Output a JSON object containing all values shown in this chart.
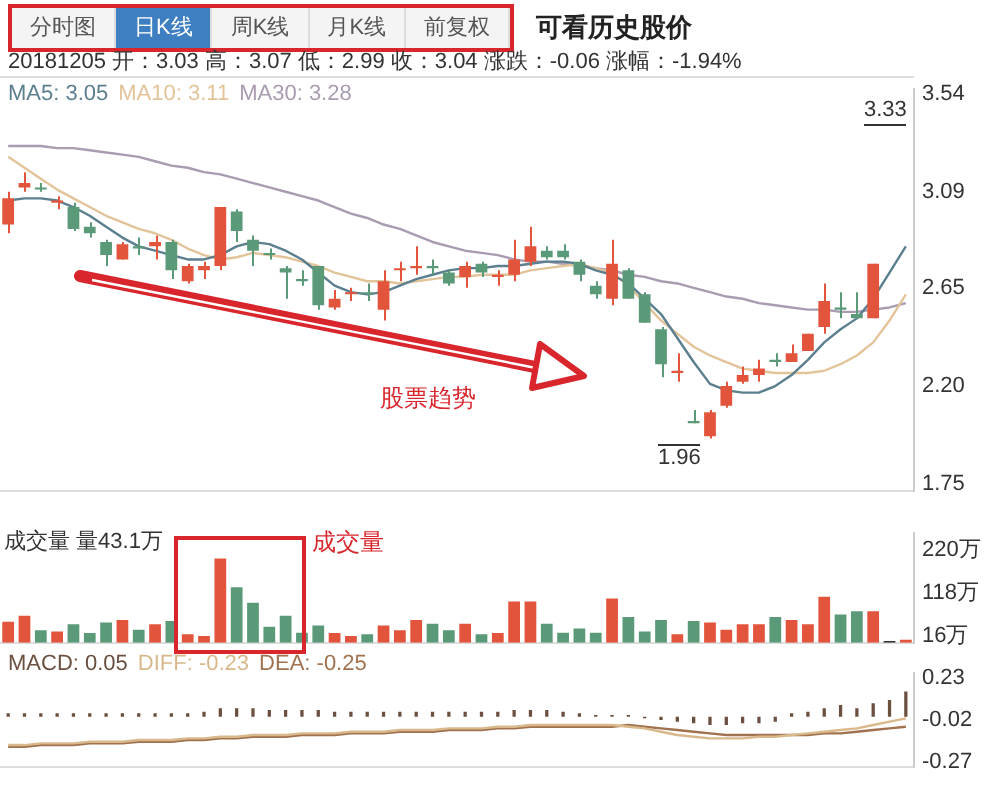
{
  "chart_data": [
    {
      "type": "candlestick",
      "title": "可看历史股价",
      "annotations": [
        "分时图",
        "日K线",
        "周K线",
        "月K线",
        "前复权",
        "20181205 开：3.03 高：3.07 低：2.99 收：3.04 涨跌：-0.06 涨幅：-1.94%",
        "3.33",
        "1.96",
        "股票趋势"
      ],
      "categories": [
        null,
        null,
        null,
        null,
        null,
        null,
        null,
        null,
        null,
        null,
        null,
        null,
        null,
        null,
        null,
        null,
        null,
        null,
        null,
        null,
        null,
        null,
        null,
        null,
        null,
        null,
        null,
        null,
        null,
        null,
        null,
        null,
        null,
        null,
        null,
        null,
        null,
        null,
        null,
        null,
        null,
        null,
        null,
        null,
        null,
        null,
        null,
        null,
        null,
        null,
        null,
        null,
        null,
        null,
        null,
        null
      ],
      "ohlc": [
        [
          2.94,
          3.09,
          2.9,
          3.06
        ],
        [
          3.11,
          3.18,
          3.09,
          3.13
        ],
        [
          3.11,
          3.13,
          3.09,
          3.1
        ],
        [
          3.04,
          3.07,
          3.01,
          3.05
        ],
        [
          3.02,
          3.04,
          2.91,
          2.92
        ],
        [
          2.93,
          2.95,
          2.88,
          2.9
        ],
        [
          2.86,
          2.87,
          2.75,
          2.8
        ],
        [
          2.78,
          2.86,
          2.78,
          2.85
        ],
        [
          2.84,
          2.88,
          2.8,
          2.83
        ],
        [
          2.84,
          2.89,
          2.78,
          2.86
        ],
        [
          2.86,
          2.87,
          2.69,
          2.73
        ],
        [
          2.68,
          2.76,
          2.67,
          2.75
        ],
        [
          2.73,
          2.77,
          2.69,
          2.75
        ],
        [
          2.75,
          3.02,
          2.73,
          3.02
        ],
        [
          3.0,
          3.01,
          2.86,
          2.91
        ],
        [
          2.87,
          2.89,
          2.75,
          2.82
        ],
        [
          2.81,
          2.83,
          2.78,
          2.8
        ],
        [
          2.74,
          2.75,
          2.6,
          2.72
        ],
        [
          2.69,
          2.73,
          2.66,
          2.68
        ],
        [
          2.75,
          2.75,
          2.55,
          2.57
        ],
        [
          2.56,
          2.64,
          2.55,
          2.6
        ],
        [
          2.62,
          2.65,
          2.59,
          2.63
        ],
        [
          2.63,
          2.67,
          2.59,
          2.62
        ],
        [
          2.55,
          2.73,
          2.5,
          2.68
        ],
        [
          2.73,
          2.77,
          2.68,
          2.74
        ],
        [
          2.74,
          2.84,
          2.71,
          2.75
        ],
        [
          2.75,
          2.78,
          2.71,
          2.74
        ],
        [
          2.72,
          2.73,
          2.66,
          2.67
        ],
        [
          2.7,
          2.77,
          2.65,
          2.75
        ],
        [
          2.76,
          2.77,
          2.7,
          2.72
        ],
        [
          2.7,
          2.73,
          2.66,
          2.71
        ],
        [
          2.71,
          2.87,
          2.68,
          2.78
        ],
        [
          2.77,
          2.93,
          2.75,
          2.84
        ],
        [
          2.82,
          2.84,
          2.78,
          2.79
        ],
        [
          2.82,
          2.85,
          2.78,
          2.79
        ],
        [
          2.77,
          2.78,
          2.68,
          2.71
        ],
        [
          2.66,
          2.68,
          2.6,
          2.62
        ],
        [
          2.6,
          2.87,
          2.57,
          2.76
        ],
        [
          2.73,
          2.74,
          2.6,
          2.6
        ],
        [
          2.62,
          2.63,
          2.49,
          2.49
        ],
        [
          2.46,
          2.47,
          2.24,
          2.3
        ],
        [
          2.26,
          2.35,
          2.22,
          2.27
        ],
        [
          2.04,
          2.09,
          2.03,
          2.03
        ],
        [
          1.97,
          2.09,
          1.96,
          2.08
        ],
        [
          2.11,
          2.22,
          2.1,
          2.2
        ],
        [
          2.22,
          2.29,
          2.21,
          2.25
        ],
        [
          2.25,
          2.32,
          2.22,
          2.28
        ],
        [
          2.32,
          2.35,
          2.29,
          2.31
        ],
        [
          2.31,
          2.39,
          2.31,
          2.35
        ],
        [
          2.36,
          2.44,
          2.36,
          2.44
        ],
        [
          2.47,
          2.67,
          2.44,
          2.59
        ],
        [
          2.56,
          2.63,
          2.51,
          2.55
        ],
        [
          2.53,
          2.63,
          2.51,
          2.51
        ],
        [
          2.51,
          2.76,
          2.51,
          2.76
        ],
        null,
        null
      ],
      "colors": [
        "#e2543c",
        "#e2543c",
        "#5b9a78",
        "#e2543c",
        "#5b9a78",
        "#5b9a78",
        "#5b9a78",
        "#e2543c",
        "#5b9a78",
        "#e2543c",
        "#5b9a78",
        "#e2543c",
        "#e2543c",
        "#e2543c",
        "#5b9a78",
        "#5b9a78",
        "#5b9a78",
        "#5b9a78",
        "#5b9a78",
        "#5b9a78",
        "#e2543c",
        "#e2543c",
        "#5b9a78",
        "#e2543c",
        "#e2543c",
        "#e2543c",
        "#5b9a78",
        "#5b9a78",
        "#e2543c",
        "#5b9a78",
        "#e2543c",
        "#e2543c",
        "#e2543c",
        "#5b9a78",
        "#5b9a78",
        "#5b9a78",
        "#5b9a78",
        "#e2543c",
        "#5b9a78",
        "#5b9a78",
        "#5b9a78",
        "#e2543c",
        "#5b9a78",
        "#e2543c",
        "#e2543c",
        "#e2543c",
        "#e2543c",
        "#5b9a78",
        "#e2543c",
        "#e2543c",
        "#e2543c",
        "#5b9a78",
        "#5b9a78",
        "#e2543c",
        "#e2543c",
        "#e2543c"
      ],
      "series": [
        {
          "type": "line",
          "name": "MA5: 3.05",
          "color": "#5b7f8f",
          "values": [
            3.05,
            3.06,
            3.06,
            3.05,
            3.02,
            2.98,
            2.93,
            2.88,
            2.84,
            2.82,
            2.8,
            2.78,
            2.78,
            2.8,
            2.84,
            2.86,
            2.85,
            2.82,
            2.78,
            2.72,
            2.66,
            2.63,
            2.62,
            2.63,
            2.66,
            2.69,
            2.71,
            2.73,
            2.74,
            2.74,
            2.75,
            2.75,
            2.76,
            2.77,
            2.77,
            2.76,
            2.73,
            2.71,
            2.67,
            2.6,
            2.53,
            2.42,
            2.31,
            2.21,
            2.18,
            2.17,
            2.17,
            2.2,
            2.25,
            2.32,
            2.4,
            2.46,
            2.51,
            2.6,
            2.72,
            2.84
          ]
        },
        {
          "type": "line",
          "name": "MA10: 3.11",
          "color": "#e3c49a",
          "values": [
            3.25,
            3.2,
            3.15,
            3.1,
            3.06,
            3.02,
            2.98,
            2.95,
            2.92,
            2.9,
            2.87,
            2.83,
            2.8,
            2.78,
            2.79,
            2.81,
            2.8,
            2.79,
            2.77,
            2.75,
            2.72,
            2.7,
            2.68,
            2.68,
            2.67,
            2.68,
            2.69,
            2.7,
            2.7,
            2.71,
            2.71,
            2.71,
            2.73,
            2.74,
            2.75,
            2.76,
            2.74,
            2.72,
            2.66,
            2.58,
            2.5,
            2.44,
            2.38,
            2.34,
            2.31,
            2.28,
            2.27,
            2.26,
            2.26,
            2.26,
            2.27,
            2.3,
            2.34,
            2.4,
            2.5,
            2.62
          ]
        },
        {
          "type": "line",
          "name": "MA30: 3.28",
          "color": "#a99bb0",
          "values": [
            3.3,
            3.3,
            3.3,
            3.29,
            3.29,
            3.28,
            3.27,
            3.26,
            3.25,
            3.23,
            3.21,
            3.2,
            3.18,
            3.17,
            3.15,
            3.13,
            3.11,
            3.09,
            3.07,
            3.05,
            3.02,
            2.99,
            2.97,
            2.94,
            2.92,
            2.89,
            2.86,
            2.84,
            2.82,
            2.81,
            2.8,
            2.78,
            2.77,
            2.77,
            2.76,
            2.75,
            2.74,
            2.73,
            2.71,
            2.7,
            2.68,
            2.67,
            2.65,
            2.63,
            2.61,
            2.6,
            2.58,
            2.57,
            2.56,
            2.55,
            2.55,
            2.54,
            2.54,
            2.55,
            2.56,
            2.58
          ]
        }
      ],
      "ylim": [
        1.72,
        3.56
      ],
      "yticks": [
        3.54,
        3.09,
        2.65,
        {
          "value": 2.2,
          "label": "2.20"
        },
        1.75
      ],
      "tick_labels": "y",
      "legend": "top left"
    },
    {
      "type": "bar",
      "annotations": [
        "成交量 量43.1万",
        "成交量"
      ],
      "categories": [
        null,
        null,
        null,
        null,
        null,
        null,
        null,
        null,
        null,
        null,
        null,
        null,
        null,
        null,
        null,
        null,
        null,
        null,
        null,
        null,
        null,
        null,
        null,
        null,
        null,
        null,
        null,
        null,
        null,
        null,
        null,
        null,
        null,
        null,
        null,
        null,
        null,
        null,
        null,
        null,
        null,
        null,
        null,
        null,
        null,
        null,
        null,
        null,
        null,
        null,
        null,
        null,
        null,
        null,
        null,
        null
      ],
      "values": [
        50,
        64,
        30,
        27,
        44,
        23,
        48,
        54,
        31,
        44,
        52,
        20,
        16,
        200,
        132,
        95,
        38,
        64,
        24,
        41,
        23,
        16,
        20,
        41,
        30,
        54,
        45,
        30,
        45,
        20,
        23,
        98,
        98,
        45,
        24,
        34,
        24,
        105,
        61,
        27,
        54,
        20,
        52,
        48,
        31,
        44,
        44,
        61,
        54,
        44,
        109,
        67,
        75,
        75,
        4,
        7
      ],
      "colors": [
        "#e2543c",
        "#e2543c",
        "#5b9a78",
        "#e2543c",
        "#5b9a78",
        "#5b9a78",
        "#5b9a78",
        "#e2543c",
        "#5b9a78",
        "#e2543c",
        "#5b9a78",
        "#e2543c",
        "#e2543c",
        "#e2543c",
        "#5b9a78",
        "#5b9a78",
        "#5b9a78",
        "#5b9a78",
        "#5b9a78",
        "#5b9a78",
        "#e2543c",
        "#e2543c",
        "#5b9a78",
        "#e2543c",
        "#e2543c",
        "#e2543c",
        "#5b9a78",
        "#5b9a78",
        "#e2543c",
        "#5b9a78",
        "#e2543c",
        "#e2543c",
        "#e2543c",
        "#5b9a78",
        "#5b9a78",
        "#5b9a78",
        "#5b9a78",
        "#e2543c",
        "#5b9a78",
        "#5b9a78",
        "#5b9a78",
        "#e2543c",
        "#5b9a78",
        "#e2543c",
        "#e2543c",
        "#e2543c",
        "#e2543c",
        "#5b9a78",
        "#e2543c",
        "#e2543c",
        "#e2543c",
        "#5b9a78",
        "#5b9a78",
        "#e2543c",
        "#333333",
        "#e2543c"
      ],
      "ylim": [
        0,
        260
      ],
      "yticks": [
        {
          "value": 16,
          "label": "16万"
        },
        {
          "value": 118,
          "label": "118万"
        },
        {
          "value": 220,
          "label": "220万"
        }
      ],
      "tick_labels": "y"
    },
    {
      "type": "bar",
      "categories": [
        null,
        null,
        null,
        null,
        null,
        null,
        null,
        null,
        null,
        null,
        null,
        null,
        null,
        null,
        null,
        null,
        null,
        null,
        null,
        null,
        null,
        null,
        null,
        null,
        null,
        null,
        null,
        null,
        null,
        null,
        null,
        null,
        null,
        null,
        null,
        null,
        null,
        null,
        null,
        null,
        null,
        null,
        null,
        null,
        null,
        null,
        null,
        null,
        null,
        null,
        null,
        null,
        null,
        null,
        null,
        null
      ],
      "series": [
        {
          "type": "bar",
          "name": "MACD: 0.05",
          "color": "#6b4f3f",
          "values": [
            0.02,
            0.02,
            0.02,
            0.02,
            0.02,
            0.02,
            0.02,
            0.02,
            0.02,
            0.02,
            0.02,
            0.02,
            0.03,
            0.05,
            0.05,
            0.05,
            0.04,
            0.04,
            0.04,
            0.04,
            0.03,
            0.03,
            0.03,
            0.03,
            0.03,
            0.03,
            0.03,
            0.03,
            0.03,
            0.03,
            0.03,
            0.04,
            0.04,
            0.04,
            0.03,
            0.02,
            0.01,
            0.01,
            0.01,
            -0.01,
            -0.02,
            -0.03,
            -0.04,
            -0.05,
            -0.05,
            -0.04,
            -0.04,
            -0.03,
            0.02,
            0.03,
            0.05,
            0.07,
            0.05,
            0.08,
            0.1,
            0.15
          ]
        },
        {
          "type": "line",
          "name": "DIFF: -0.23",
          "color": "#d9b98c",
          "values": [
            -0.17,
            -0.17,
            -0.16,
            -0.16,
            -0.16,
            -0.15,
            -0.15,
            -0.15,
            -0.14,
            -0.14,
            -0.14,
            -0.13,
            -0.13,
            -0.12,
            -0.12,
            -0.11,
            -0.11,
            -0.11,
            -0.1,
            -0.1,
            -0.1,
            -0.09,
            -0.09,
            -0.09,
            -0.08,
            -0.08,
            -0.08,
            -0.07,
            -0.07,
            -0.07,
            -0.06,
            -0.06,
            -0.05,
            -0.05,
            -0.05,
            -0.05,
            -0.05,
            -0.05,
            -0.06,
            -0.07,
            -0.09,
            -0.11,
            -0.12,
            -0.13,
            -0.13,
            -0.13,
            -0.12,
            -0.12,
            -0.11,
            -0.1,
            -0.09,
            -0.08,
            -0.07,
            -0.05,
            -0.03,
            -0.01
          ]
        },
        {
          "type": "line",
          "name": "DEA: -0.25",
          "color": "#a0724f",
          "values": [
            -0.18,
            -0.18,
            -0.17,
            -0.17,
            -0.17,
            -0.16,
            -0.16,
            -0.16,
            -0.15,
            -0.15,
            -0.15,
            -0.14,
            -0.14,
            -0.13,
            -0.13,
            -0.12,
            -0.12,
            -0.12,
            -0.11,
            -0.11,
            -0.11,
            -0.1,
            -0.1,
            -0.1,
            -0.09,
            -0.09,
            -0.09,
            -0.08,
            -0.08,
            -0.08,
            -0.07,
            -0.07,
            -0.06,
            -0.06,
            -0.06,
            -0.06,
            -0.06,
            -0.06,
            -0.05,
            -0.06,
            -0.07,
            -0.08,
            -0.09,
            -0.1,
            -0.11,
            -0.11,
            -0.11,
            -0.11,
            -0.11,
            -0.11,
            -0.1,
            -0.1,
            -0.09,
            -0.08,
            -0.07,
            -0.06
          ]
        }
      ],
      "ylim": [
        -0.3,
        0.26
      ],
      "yticks": [
        0.23,
        -0.02,
        -0.27
      ],
      "tick_labels": "y",
      "legend": "top left"
    }
  ]
}
